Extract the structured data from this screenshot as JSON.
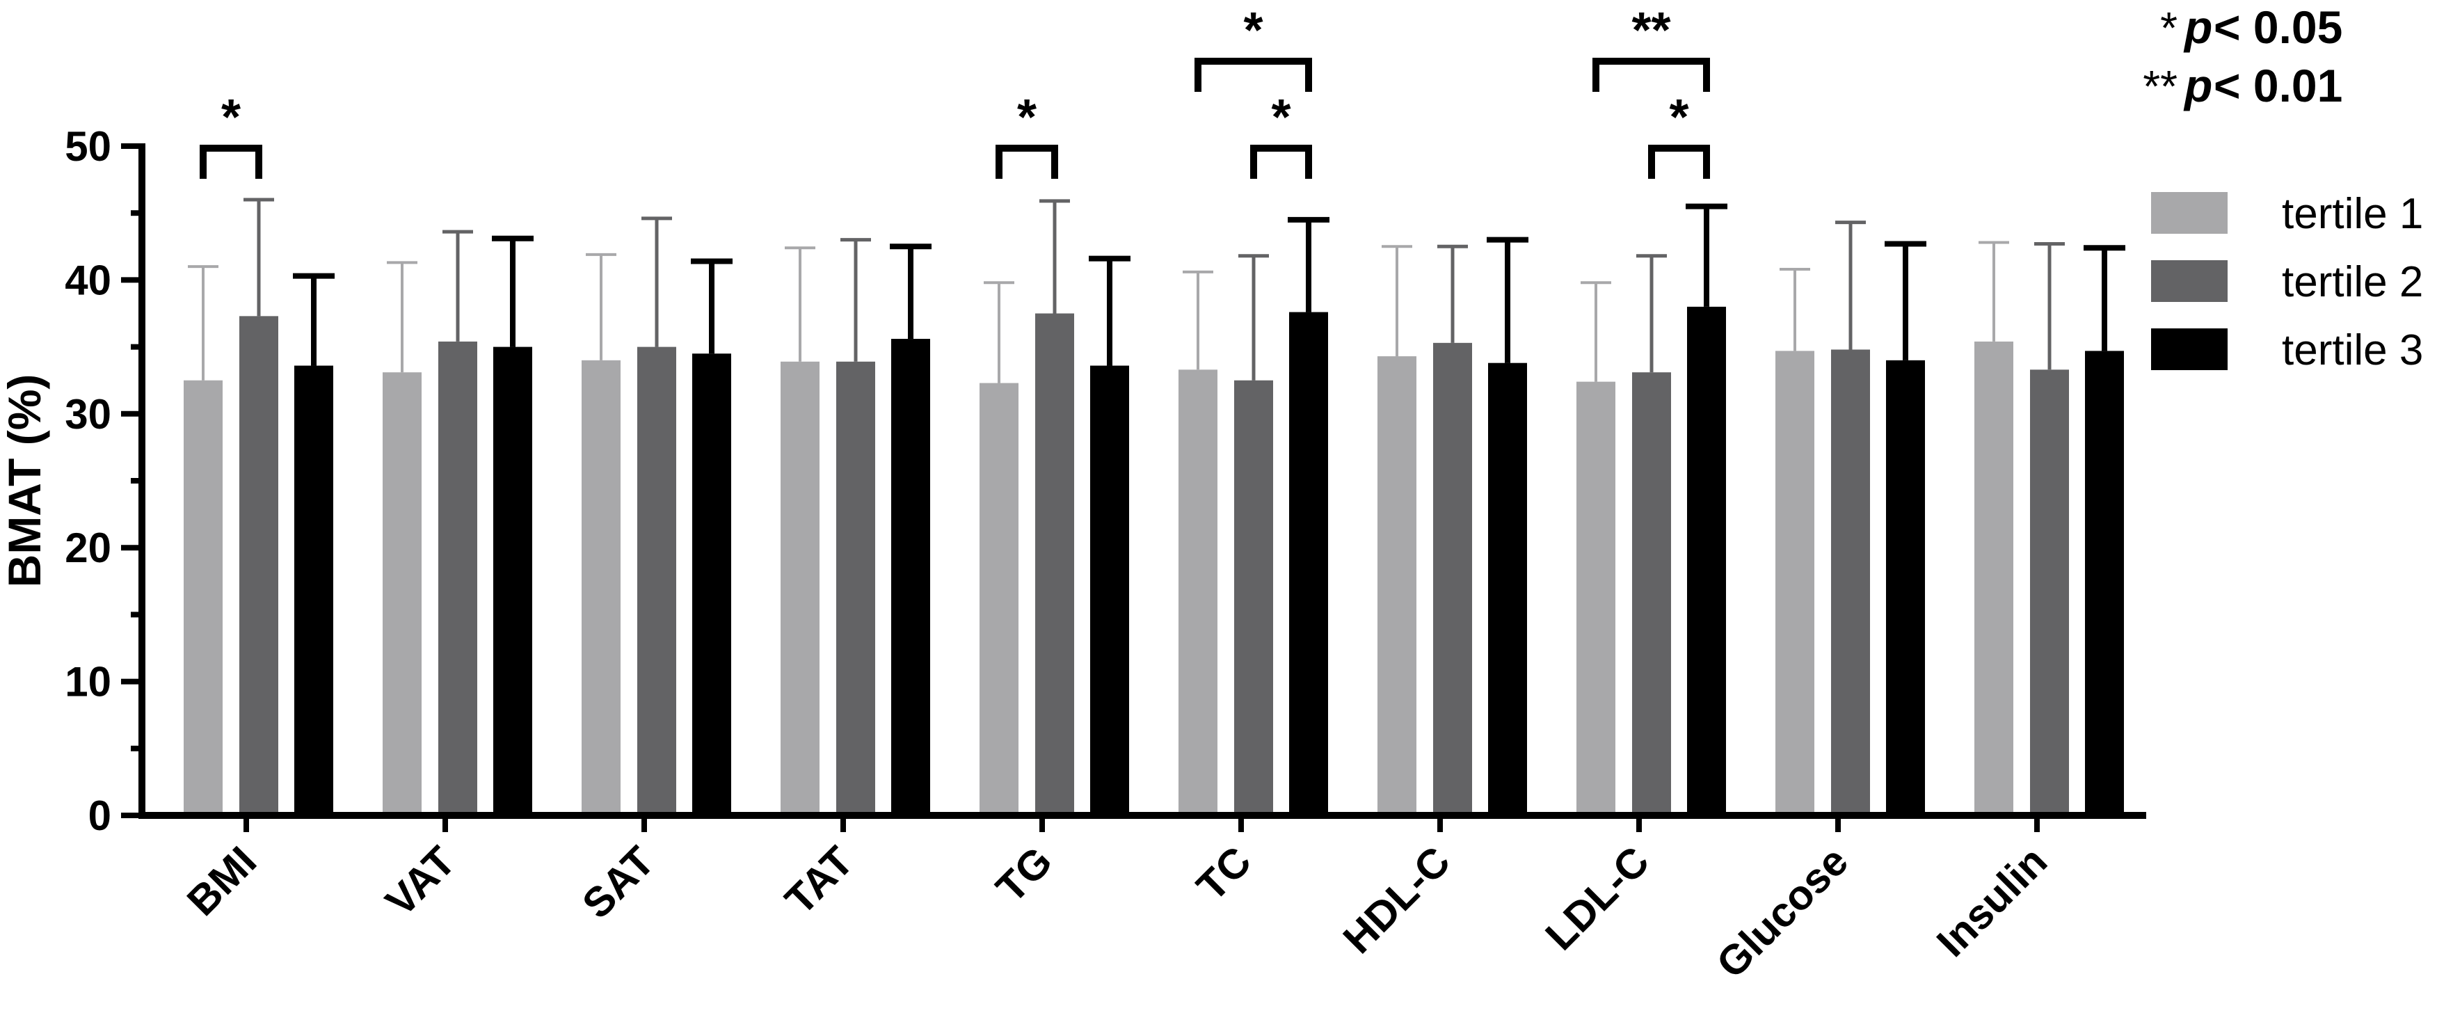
{
  "chart_data": {
    "type": "bar",
    "ylabel": "BMAT (%)",
    "xlabel": "",
    "ylim": [
      0,
      50
    ],
    "yticks": [
      "0",
      "10",
      "20",
      "30",
      "40",
      "50"
    ],
    "categories": [
      "BMI",
      "VAT",
      "SAT",
      "TAT",
      "TG",
      "TC",
      "HDL-C",
      "LDL-C",
      "Glucose",
      "Insulin"
    ],
    "series": [
      {
        "name": "tertile 1",
        "color": "#a8a8aa",
        "values": [
          32.5,
          33.1,
          34.0,
          33.9,
          32.3,
          33.3,
          34.3,
          32.4,
          34.7,
          35.4
        ],
        "errors": [
          8.5,
          8.2,
          7.9,
          8.5,
          7.5,
          7.3,
          8.2,
          7.4,
          6.1,
          7.4
        ]
      },
      {
        "name": "tertile 2",
        "color": "#636365",
        "values": [
          37.3,
          35.4,
          35.0,
          33.9,
          37.5,
          32.5,
          35.3,
          33.1,
          34.8,
          33.3
        ],
        "errors": [
          8.7,
          8.2,
          9.6,
          9.1,
          8.4,
          9.3,
          7.2,
          8.7,
          9.5,
          9.4
        ]
      },
      {
        "name": "tertile 3",
        "color": "#000000",
        "values": [
          33.6,
          35.0,
          34.5,
          35.6,
          33.6,
          37.6,
          33.8,
          38.0,
          34.0,
          34.7
        ],
        "errors": [
          6.7,
          8.1,
          6.9,
          6.9,
          8.0,
          6.9,
          9.2,
          7.5,
          8.7,
          7.7
        ]
      }
    ],
    "significance": [
      {
        "category": "BMI",
        "from_series": 0,
        "to_series": 1,
        "label": "*",
        "level": 1
      },
      {
        "category": "TG",
        "from_series": 0,
        "to_series": 1,
        "label": "*",
        "level": 1
      },
      {
        "category": "TC",
        "from_series": 1,
        "to_series": 2,
        "label": "*",
        "level": 1
      },
      {
        "category": "TC",
        "from_series": 0,
        "to_series": 2,
        "label": "*",
        "level": 2
      },
      {
        "category": "LDL-C",
        "from_series": 1,
        "to_series": 2,
        "label": "*",
        "level": 1
      },
      {
        "category": "LDL-C",
        "from_series": 0,
        "to_series": 2,
        "label": "**",
        "level": 2
      }
    ],
    "legend_position": "right",
    "notes": [
      {
        "stars": "*",
        "p": "p",
        "rest": "< 0.05"
      },
      {
        "stars": "**",
        "p": "p",
        "rest": "< 0.01"
      }
    ]
  }
}
